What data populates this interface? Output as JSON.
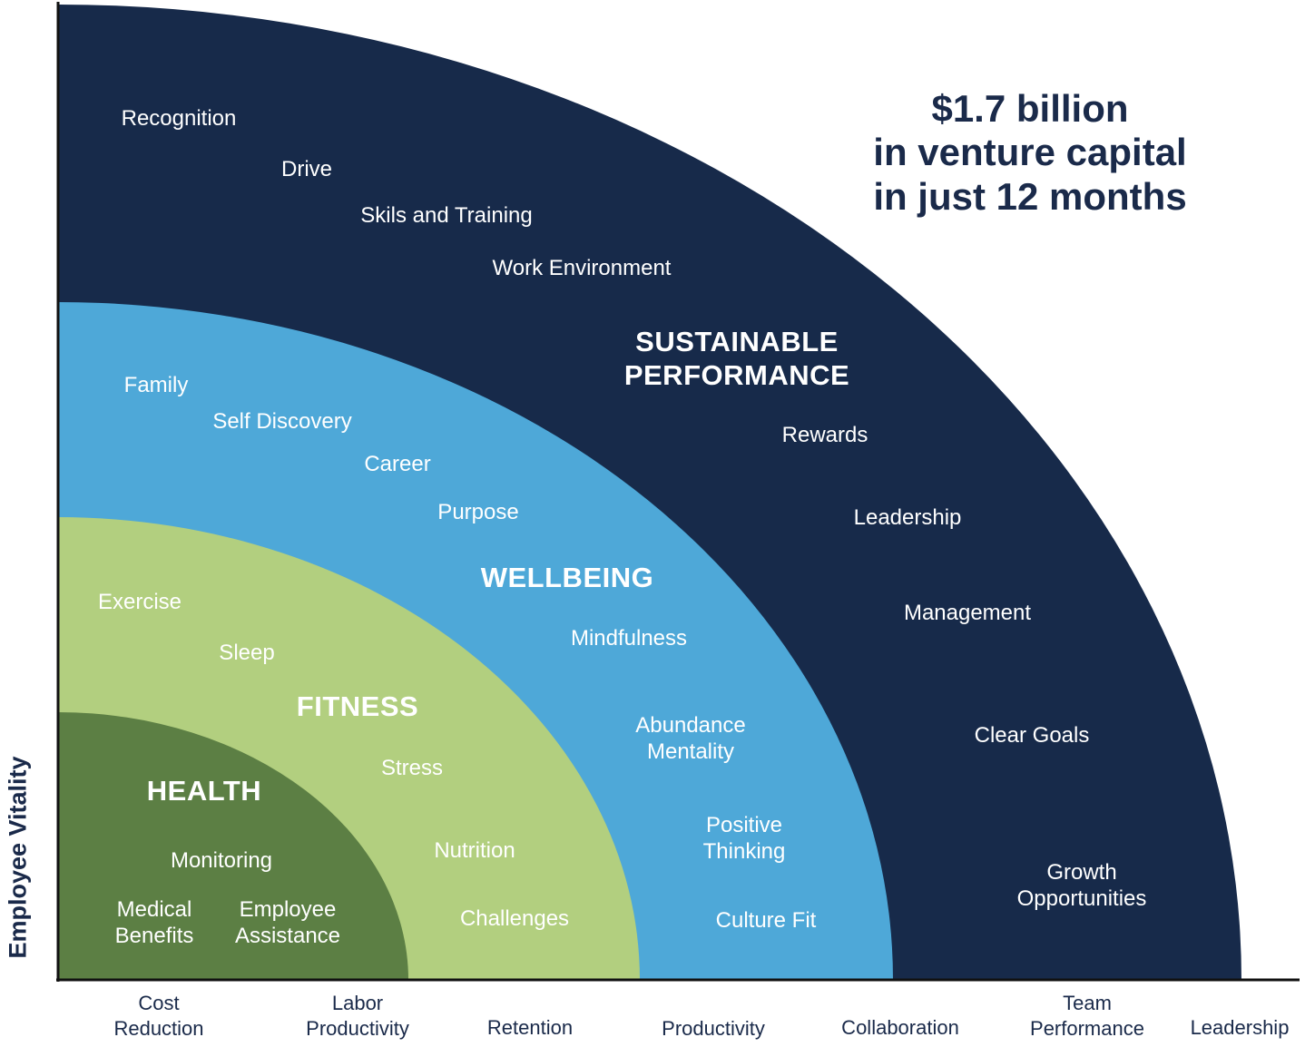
{
  "headline": [
    "$1.7 billion",
    "in venture capital",
    "in just 12 months"
  ],
  "y_axis_label": "Employee Vitality",
  "x_axis_ticks": [
    [
      "Cost",
      "Reduction"
    ],
    [
      "Labor",
      "Productivity"
    ],
    [
      "Retention"
    ],
    [
      "Productivity"
    ],
    [
      "Collaboration"
    ],
    [
      "Team",
      "Performance"
    ],
    [
      "Leadership"
    ]
  ],
  "colors": {
    "sustainable_performance": "#172a4a",
    "wellbeing": "#4ea8d8",
    "fitness": "#b2cf7f",
    "health": "#5c7f44",
    "text_dark": "#1a2a4a",
    "axis": "#111111"
  },
  "bands": {
    "sustainable_performance": {
      "title": [
        "SUSTAINABLE",
        "PERFORMANCE"
      ],
      "items": [
        [
          "Recognition"
        ],
        [
          "Drive"
        ],
        [
          "Skils and Training"
        ],
        [
          "Work Environment"
        ],
        [
          "Rewards"
        ],
        [
          "Leadership"
        ],
        [
          "Management"
        ],
        [
          "Clear Goals"
        ],
        [
          "Growth",
          "Opportunities"
        ]
      ]
    },
    "wellbeing": {
      "title": [
        "WELLBEING"
      ],
      "items": [
        [
          "Family"
        ],
        [
          "Self Discovery"
        ],
        [
          "Career"
        ],
        [
          "Purpose"
        ],
        [
          "Mindfulness"
        ],
        [
          "Abundance",
          "Mentality"
        ],
        [
          "Positive",
          "Thinking"
        ],
        [
          "Culture Fit"
        ]
      ]
    },
    "fitness": {
      "title": [
        "FITNESS"
      ],
      "items": [
        [
          "Exercise"
        ],
        [
          "Sleep"
        ],
        [
          "Stress"
        ],
        [
          "Nutrition"
        ],
        [
          "Challenges"
        ]
      ]
    },
    "health": {
      "title": [
        "HEALTH"
      ],
      "items": [
        [
          "Monitoring"
        ],
        [
          "Medical",
          "Benefits"
        ],
        [
          "Employee",
          "Assistance"
        ]
      ]
    }
  }
}
